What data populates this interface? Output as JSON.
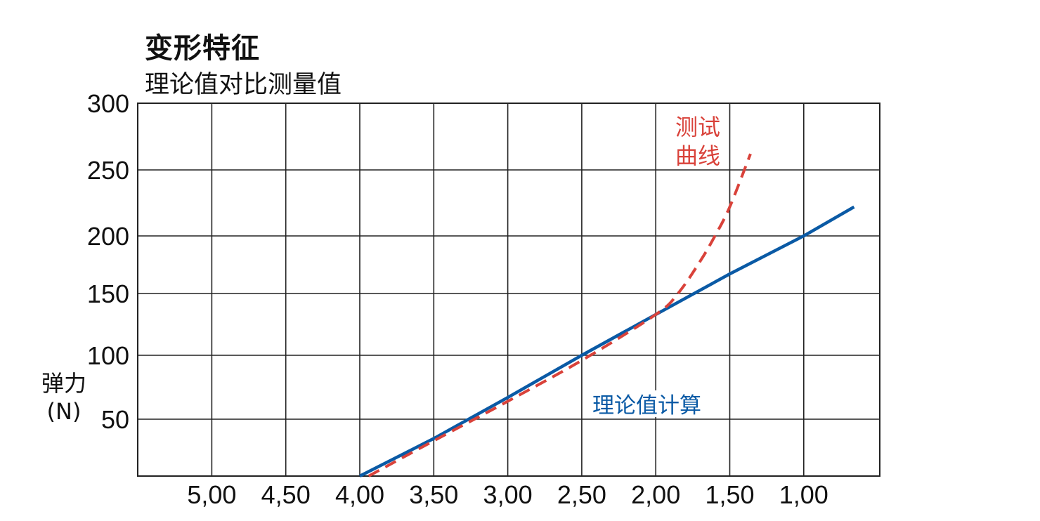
{
  "chart": {
    "title": "变形特征",
    "subtitle": "理论值对比测量值",
    "ylabel_line1": "弹力",
    "ylabel_line2": "(N)",
    "series_label_test_line1": "测试",
    "series_label_test_line2": "曲线",
    "series_label_theory": "理论值计算",
    "colors": {
      "theory": "#0a5aa5",
      "test": "#d9423a",
      "grid": "#222222"
    }
  },
  "chart_data": {
    "type": "line",
    "title": "变形特征",
    "subtitle": "理论值对比测量值",
    "xlabel": "",
    "ylabel": "弹力 (N)",
    "x_tick_labels": [
      "5,00",
      "4,50",
      "4,00",
      "3,50",
      "3,00",
      "2,50",
      "2,00",
      "1,50",
      "1,00"
    ],
    "y_tick_labels": [
      "50",
      "100",
      "150",
      "200",
      "250",
      "300"
    ],
    "x_reversed": true,
    "xlim": [
      5.5,
      0.48
    ],
    "ylim": [
      0,
      300
    ],
    "grid": true,
    "series": [
      {
        "name": "理论值计算",
        "style": "solid",
        "color": "#0a5aa5",
        "x": [
          4.0,
          3.5,
          3.0,
          2.5,
          2.0,
          1.5,
          1.0,
          0.66
        ],
        "y": [
          0,
          33,
          67,
          100,
          133,
          167,
          200,
          222
        ]
      },
      {
        "name": "测试曲线",
        "style": "dashed",
        "color": "#d9423a",
        "x": [
          3.94,
          3.5,
          3.0,
          2.5,
          2.0,
          1.85,
          1.7,
          1.6,
          1.5,
          1.36
        ],
        "y": [
          0,
          31,
          64,
          96,
          133,
          150,
          178,
          200,
          222,
          262
        ]
      }
    ]
  }
}
